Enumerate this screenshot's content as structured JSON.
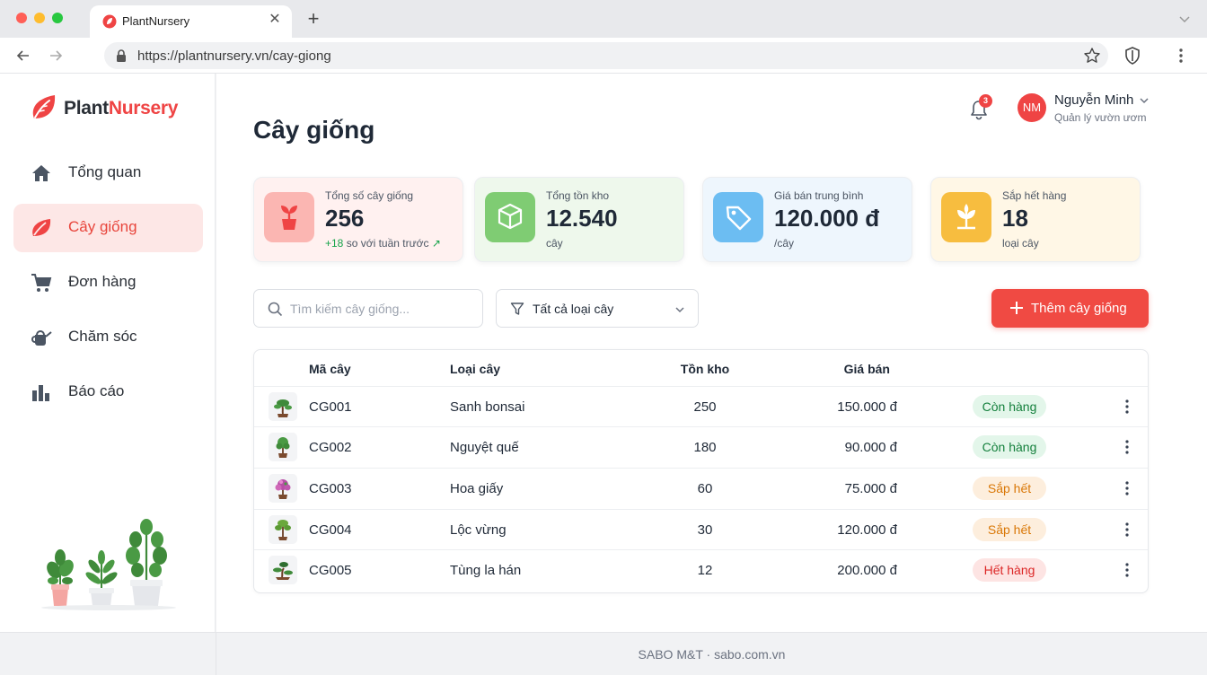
{
  "browser": {
    "tab_title": "PlantNursery",
    "url": "https://plantnursery.vn/cay-giong"
  },
  "brand": {
    "part1": "Plant",
    "part2": "Nursery",
    "accent_color": "#ef4444"
  },
  "sidebar": {
    "items": [
      {
        "label": "Tổng quan",
        "icon": "home-icon",
        "active": false
      },
      {
        "label": "Cây giống",
        "icon": "leaf-icon",
        "active": true
      },
      {
        "label": "Đơn hàng",
        "icon": "cart-icon",
        "active": false
      },
      {
        "label": "Chăm sóc",
        "icon": "watering-can-icon",
        "active": false
      },
      {
        "label": "Báo cáo",
        "icon": "bar-chart-icon",
        "active": false
      }
    ]
  },
  "header": {
    "notification_count": "3",
    "user_initials": "NM",
    "user_name": "Nguyễn Minh",
    "user_role": "Quản lý vườn ươm"
  },
  "page": {
    "title": "Cây giống"
  },
  "stats": [
    {
      "label": "Tổng số cây giống",
      "value": "256",
      "sub_highlight": "+18",
      "sub": "so với tuần trước",
      "icon": "sprout-icon",
      "color": "#ef4444"
    },
    {
      "label": "Tổng tồn kho",
      "value": "12.540",
      "sub": "cây",
      "icon": "box-icon",
      "color": "#6cc26a"
    },
    {
      "label": "Giá bán trung bình",
      "value": "120.000 đ",
      "sub": "/cây",
      "icon": "price-tag-icon",
      "color": "#5ab4f0"
    },
    {
      "label": "Sắp hết hàng",
      "value": "18",
      "sub": "loại cây",
      "icon": "plant-warning-icon",
      "color": "#f6b73c"
    }
  ],
  "toolbar": {
    "search_placeholder": "Tìm kiếm cây giống...",
    "filter_label": "Tất cả loại cây",
    "add_label": "Thêm cây giống"
  },
  "table": {
    "columns": [
      "Mã cây",
      "Loại cây",
      "Tồn kho",
      "Giá bán"
    ],
    "rows": [
      {
        "code": "CG001",
        "type": "Sanh bonsai",
        "stock": "250",
        "price": "150.000 đ",
        "status": "Còn hàng",
        "status_kind": "green"
      },
      {
        "code": "CG002",
        "type": "Nguyệt quế",
        "stock": "180",
        "price": "90.000 đ",
        "status": "Còn hàng",
        "status_kind": "green"
      },
      {
        "code": "CG003",
        "type": "Hoa giấy",
        "stock": "60",
        "price": "75.000 đ",
        "status": "Sắp hết",
        "status_kind": "orange"
      },
      {
        "code": "CG004",
        "type": "Lộc vừng",
        "stock": "30",
        "price": "120.000 đ",
        "status": "Sắp hết",
        "status_kind": "orange"
      },
      {
        "code": "CG005",
        "type": "Tùng la hán",
        "stock": "12",
        "price": "200.000 đ",
        "status": "Hết hàng",
        "status_kind": "red"
      }
    ]
  },
  "footer": {
    "text": "SABO M&T · sabo.com.vn"
  }
}
